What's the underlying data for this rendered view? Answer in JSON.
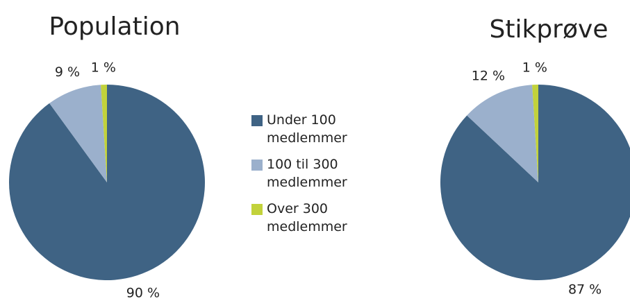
{
  "chart_data": [
    {
      "type": "pie",
      "title": "Population",
      "categories": [
        "Under 100 medlemmer",
        "100 til 300 medlemmer",
        "Over 300 medlemmer"
      ],
      "values": [
        90,
        9,
        1
      ],
      "value_labels": [
        "90 %",
        "9 %",
        "1 %"
      ],
      "colors": [
        "#3f6384",
        "#9bb0cc",
        "#c2d23b"
      ],
      "legend": "right"
    },
    {
      "type": "pie",
      "title": "Stikprøve",
      "categories": [
        "Under 100 medlemmer",
        "100 til 300 medlemmer",
        "Over 300 medlemmer"
      ],
      "values": [
        87,
        12,
        1
      ],
      "value_labels": [
        "87 %",
        "12 %",
        "1 %"
      ],
      "colors": [
        "#3f6384",
        "#9bb0cc",
        "#c2d23b"
      ]
    }
  ]
}
